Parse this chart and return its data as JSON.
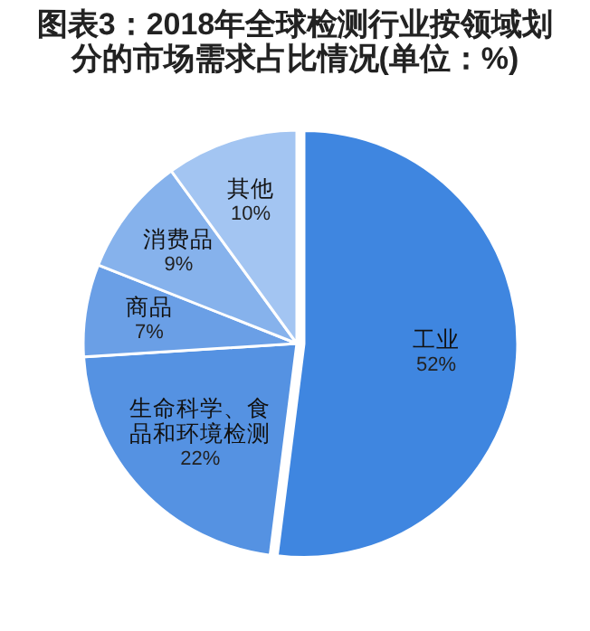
{
  "chart_data": {
    "type": "pie",
    "title": "图表3：2018年全球检测行业按领域划分的市场需求占比情况(单位：%)",
    "categories": [
      "工业",
      "生命科学、食品和环境检测",
      "商品",
      "消费品",
      "其他"
    ],
    "values": [
      52,
      22,
      7,
      9,
      10
    ],
    "value_labels": [
      "52%",
      "22%",
      "7%",
      "9%",
      "10%"
    ],
    "colors": [
      "#3f86e0",
      "#5592e2",
      "#6a9fe6",
      "#86b2ec",
      "#a3c5f2"
    ]
  }
}
